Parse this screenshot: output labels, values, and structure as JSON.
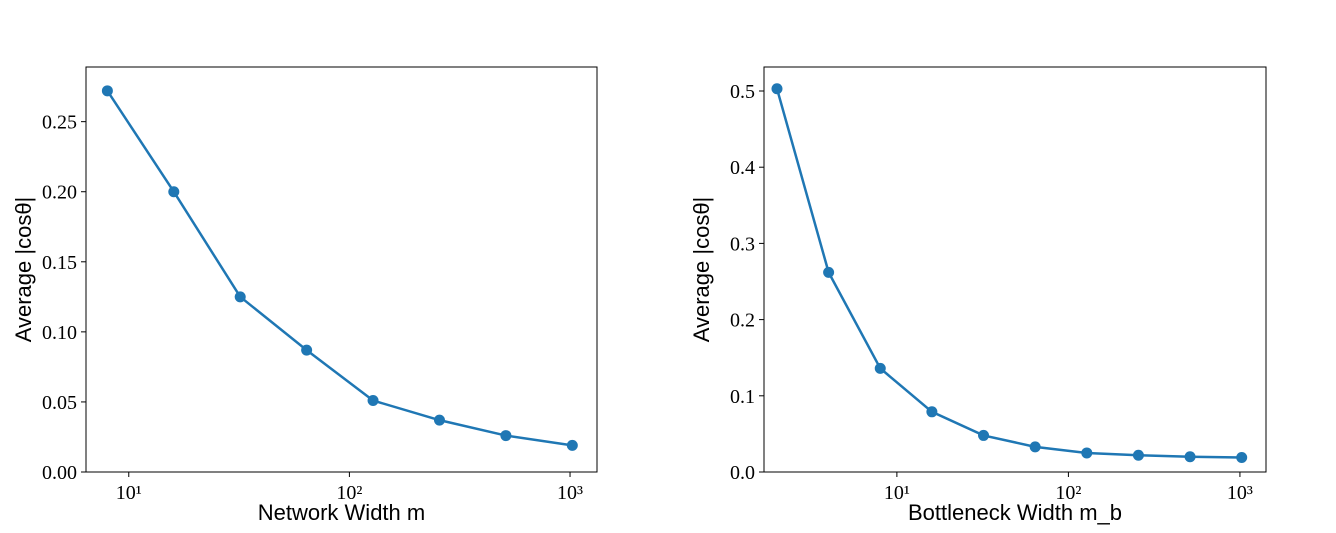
{
  "chart_data": [
    {
      "type": "line",
      "x_label": "Network Width m",
      "y_label": "Average |cosθ|",
      "x": [
        8,
        16,
        32,
        64,
        128,
        256,
        512,
        1024
      ],
      "series": [
        {
          "color": "#1f77b4",
          "values": [
            0.272,
            0.2,
            0.125,
            0.087,
            0.051,
            0.037,
            0.026,
            0.019
          ]
        }
      ],
      "xscale": "log",
      "xlim": [
        6.4,
        1325
      ],
      "xticks": [
        {
          "value": 10,
          "label": "10¹"
        },
        {
          "value": 100,
          "label": "10²"
        },
        {
          "value": 1000,
          "label": "10³"
        }
      ],
      "ylim": [
        0,
        0.289
      ],
      "yticks": [
        {
          "value": 0,
          "label": "0.00"
        },
        0.05,
        {
          "value": 0.1,
          "label": "0.10"
        },
        0.15,
        {
          "value": 0.2,
          "label": "0.20"
        },
        0.25
      ]
    },
    {
      "type": "line",
      "x_label": "Bottleneck Width m_b",
      "y_label": "Average |cosθ|",
      "x": [
        2,
        4,
        8,
        16,
        32,
        64,
        128,
        256,
        512,
        1024
      ],
      "series": [
        {
          "color": "#1f77b4",
          "values": [
            0.503,
            0.262,
            0.136,
            0.079,
            0.048,
            0.033,
            0.025,
            0.022,
            0.02,
            0.019
          ]
        }
      ],
      "xscale": "log",
      "xlim": [
        1.68,
        1419
      ],
      "xticks": [
        {
          "value": 10,
          "label": "10¹"
        },
        {
          "value": 100,
          "label": "10²"
        },
        {
          "value": 1000,
          "label": "10³"
        }
      ],
      "ylim": [
        0,
        0.5315
      ],
      "yticks": [
        {
          "value": 0,
          "label": "0.0"
        },
        0.1,
        0.2,
        0.3,
        0.4,
        0.5
      ]
    }
  ]
}
